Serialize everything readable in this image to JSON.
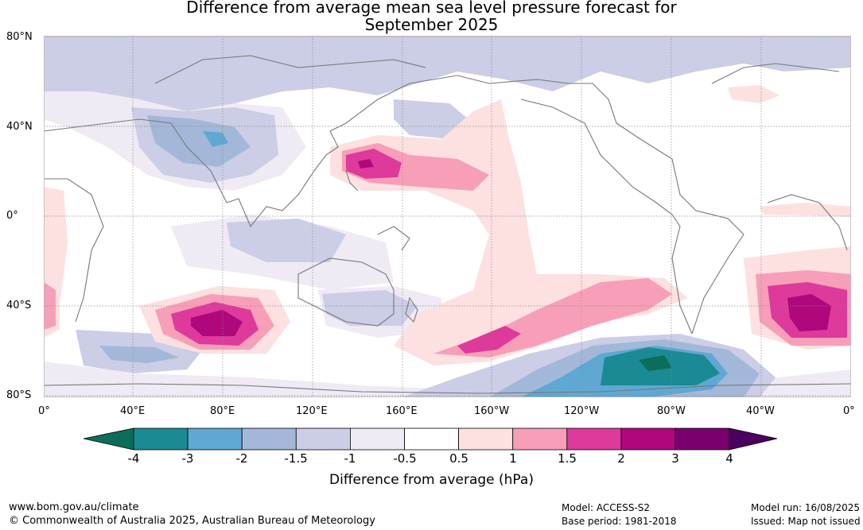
{
  "title": {
    "line1": "Difference from average mean sea level pressure forecast for",
    "line2": "September 2025"
  },
  "axes": {
    "lat_labels": [
      "80°N",
      "40°N",
      "0°",
      "40°S",
      "80°S"
    ],
    "lon_labels": [
      "0°",
      "40°E",
      "80°E",
      "120°E",
      "160°E",
      "160°W",
      "120°W",
      "80°W",
      "40°W",
      "0°"
    ]
  },
  "colorbar": {
    "label": "Difference from average (hPa)",
    "ticks": [
      "-4",
      "-3",
      "-2",
      "-1.5",
      "-1",
      "-0.5",
      "0.5",
      "1",
      "1.5",
      "2",
      "3",
      "4"
    ],
    "colors": [
      "#1a8a94",
      "#5fa8d3",
      "#a3b8d8",
      "#cccde6",
      "#efeaf3",
      "#ffffff",
      "#fde0e0",
      "#f79fb8",
      "#dd3a9b",
      "#b0077c",
      "#7a0070"
    ],
    "low_extend_color": "#0a6e5a",
    "high_extend_color": "#4a0060"
  },
  "footer": {
    "url": "www.bom.gov.au/climate",
    "copyright": "© Commonwealth of Australia 2025, Australian Bureau of Meteorology",
    "model": "Model: ACCESS-S2",
    "base_period": "Base period: 1981-2018",
    "model_run": "Model run: 16/08/2025",
    "issued": "Issued: Map not issued"
  }
}
